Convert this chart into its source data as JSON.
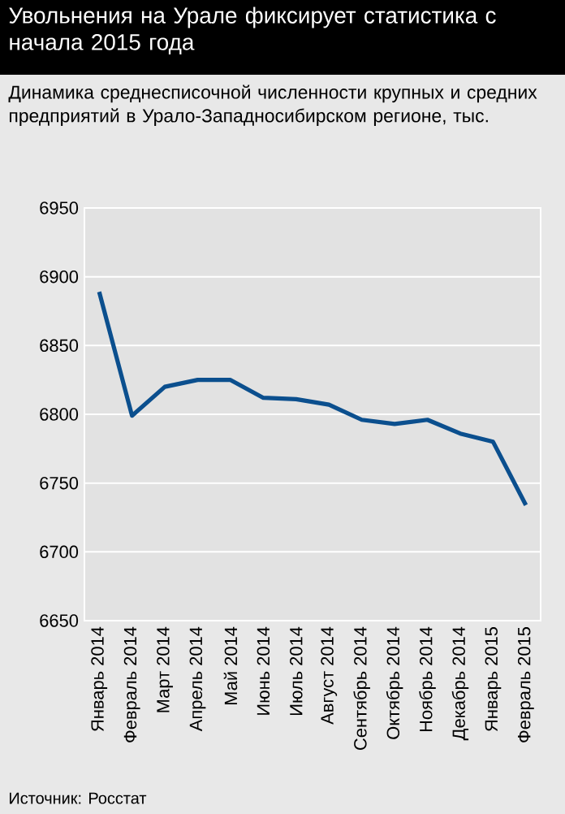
{
  "chart_data": {
    "type": "line",
    "title": "Увольнения на Урале фиксирует статистика с начала 2015 года",
    "subtitle": "Динамика среднесписочной численности крупных и средних предприятий в Урало-Западносибирском регионе, тыс.",
    "categories": [
      "Январь 2014",
      "Февраль 2014",
      "Март 2014",
      "Апрель 2014",
      "Май 2014",
      "Июнь 2014",
      "Июль 2014",
      "Август 2014",
      "Сентябрь 2014",
      "Октябрь 2014",
      "Ноябрь 2014",
      "Декабрь 2014",
      "Январь 2015",
      "Февраль 2015"
    ],
    "values": [
      6889,
      6799,
      6820,
      6825,
      6825,
      6812,
      6811,
      6807,
      6796,
      6793,
      6796,
      6786,
      6780,
      6734
    ],
    "color": "#0b4f8e",
    "ylim": [
      6650,
      6950
    ],
    "yticks": [
      6650,
      6700,
      6750,
      6800,
      6850,
      6900,
      6950
    ],
    "grid": "y",
    "line_style": "solid",
    "annotations": [
      "Источник: Росстат"
    ]
  }
}
